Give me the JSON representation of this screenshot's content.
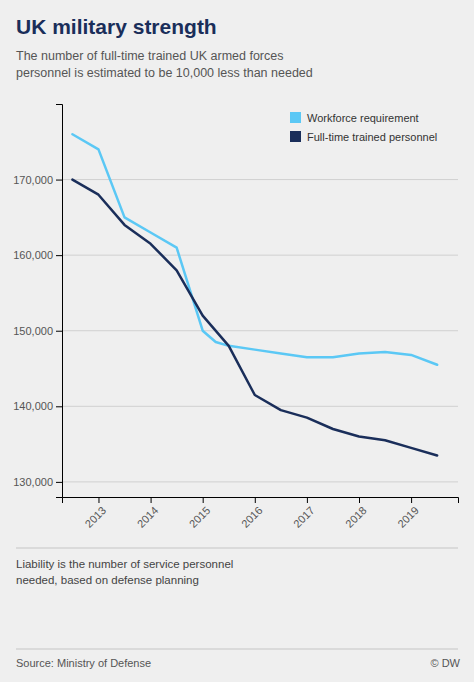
{
  "chart_data": {
    "type": "line",
    "title": "UK military strength",
    "subtitle": "The number of full-time trained UK armed forces\npersonnel is estimated to be 10,000 less than needed",
    "annotations": [
      "Liability is the number of service personnel\nneeded, based on defense planning",
      "Source: Ministry of Defense",
      "© DW"
    ],
    "series": [
      {
        "name": "Workforce requirement",
        "color": "#5bc8f5",
        "x": [
          2012.5,
          2013.0,
          2013.5,
          2014.0,
          2014.5,
          2015.0,
          2015.25,
          2015.5,
          2016.0,
          2016.5,
          2017.0,
          2017.5,
          2018.0,
          2018.5,
          2019.0,
          2019.5
        ],
        "values": [
          176000,
          174000,
          165000,
          163000,
          161000,
          150000,
          148500,
          148000,
          147500,
          147000,
          146500,
          146500,
          147000,
          147200,
          146800,
          145500
        ]
      },
      {
        "name": "Full-time trained personnel",
        "color": "#1a2e5a",
        "x": [
          2012.5,
          2013.0,
          2013.5,
          2014.0,
          2014.5,
          2015.0,
          2015.5,
          2016.0,
          2016.5,
          2017.0,
          2017.5,
          2018.0,
          2018.5,
          2019.0,
          2019.5
        ],
        "values": [
          170000,
          168000,
          164000,
          161500,
          158000,
          152000,
          148000,
          141500,
          139500,
          138500,
          137000,
          136000,
          135500,
          134500,
          133500
        ]
      }
    ],
    "xlim": [
      2012.3,
      2019.9
    ],
    "xticks": [
      2013,
      2014,
      2015,
      2016,
      2017,
      2018,
      2019
    ],
    "ylim": [
      128000,
      180000
    ],
    "yticks": [
      {
        "value": 130000,
        "label": "130,000"
      },
      {
        "value": 140000,
        "label": "140,000"
      },
      {
        "value": 150000,
        "label": "150,000"
      },
      {
        "value": 160000,
        "label": "160,000"
      },
      {
        "value": 170000,
        "label": "170,000"
      }
    ],
    "grid": true,
    "legend": "upper right"
  }
}
